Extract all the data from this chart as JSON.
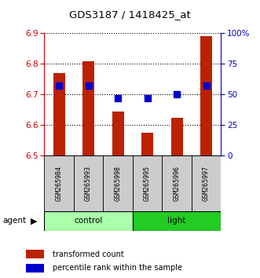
{
  "title": "GDS3187 / 1418425_at",
  "samples": [
    "GSM265984",
    "GSM265993",
    "GSM265998",
    "GSM265995",
    "GSM265996",
    "GSM265997"
  ],
  "groups": [
    "control",
    "control",
    "control",
    "light",
    "light",
    "light"
  ],
  "transformed_counts": [
    6.77,
    6.81,
    6.645,
    6.575,
    6.625,
    6.89
  ],
  "percentile_ranks": [
    57,
    57,
    47,
    47,
    50,
    57
  ],
  "y_min": 6.5,
  "y_max": 6.9,
  "y_ticks": [
    6.5,
    6.6,
    6.7,
    6.8,
    6.9
  ],
  "y2_ticks": [
    0,
    25,
    50,
    75,
    100
  ],
  "bar_color": "#bb2200",
  "dot_color": "#0000cc",
  "control_color": "#aaffaa",
  "light_color": "#22cc22",
  "left_axis_color": "#cc0000",
  "right_axis_color": "#0000cc",
  "bar_width": 0.4,
  "dot_size": 30,
  "agent_label": "agent",
  "legend_items": [
    "transformed count",
    "percentile rank within the sample"
  ]
}
